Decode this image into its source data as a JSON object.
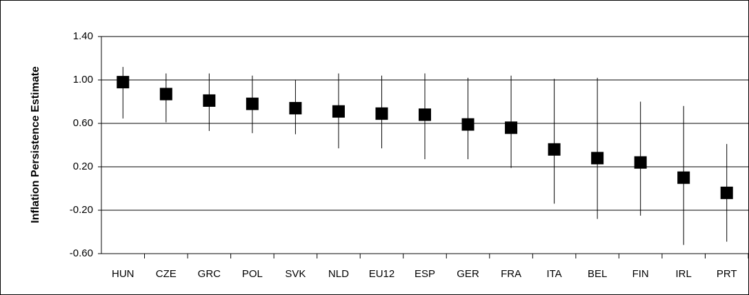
{
  "chart_data": {
    "type": "errorpoint",
    "y_label": "Inflation Persistence Estimate",
    "categories": [
      "HUN",
      "CZE",
      "GRC",
      "POL",
      "SVK",
      "NLD",
      "EU12",
      "ESP",
      "GER",
      "FRA",
      "ITA",
      "BEL",
      "FIN",
      "IRL",
      "PRT"
    ],
    "series": [
      {
        "color": "#000000",
        "values": [
          0.98,
          0.87,
          0.81,
          0.78,
          0.74,
          0.71,
          0.69,
          0.68,
          0.59,
          0.56,
          0.36,
          0.28,
          0.24,
          0.1,
          -0.04
        ],
        "lower": [
          0.645,
          0.61,
          0.53,
          0.51,
          0.5,
          0.37,
          0.37,
          0.27,
          0.27,
          0.19,
          -0.14,
          -0.28,
          -0.25,
          -0.52,
          -0.49
        ],
        "upper": [
          1.12,
          1.06,
          1.06,
          1.04,
          1.0,
          1.06,
          1.04,
          1.06,
          1.02,
          1.04,
          1.01,
          1.02,
          0.8,
          0.76,
          0.41
        ]
      }
    ],
    "ylim": [
      -0.6,
      1.4
    ],
    "yticks": [
      {
        "value": -0.6,
        "label": "-0.60"
      },
      {
        "value": -0.2,
        "label": "-0.20"
      },
      {
        "value": 0.2,
        "label": "0.20"
      },
      {
        "value": 0.6,
        "label": "0.60"
      },
      {
        "value": 1.0,
        "label": "1.00"
      },
      {
        "value": 1.4,
        "label": "1.40"
      }
    ],
    "grid": true
  }
}
